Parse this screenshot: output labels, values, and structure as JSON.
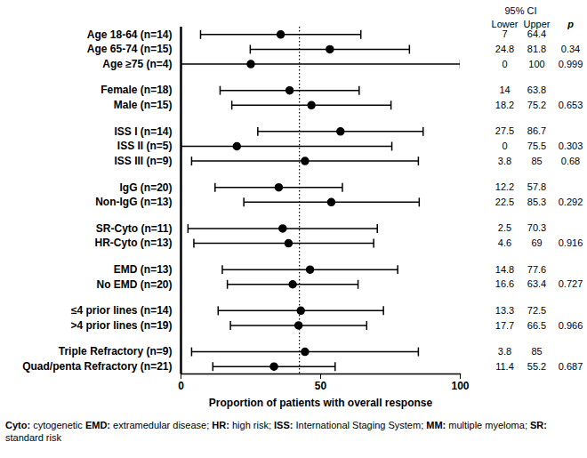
{
  "chart_data": {
    "type": "forest",
    "x_label": "Proportion of patients with overall response",
    "xlim": [
      0,
      100
    ],
    "xticks": [
      0,
      50,
      100
    ],
    "reference_line": 42.4,
    "color": "#000000",
    "ci_header": "95% CI",
    "column_headers": [
      "Lower",
      "Upper",
      "p"
    ],
    "groups": [
      {
        "categories": [
          "Age 18-64 (n=14)",
          "Age 65-74 (n=15)",
          "Age ≥75 (n=4)"
        ],
        "values": [
          35.7,
          53.3,
          25
        ],
        "lower": [
          7,
          24.8,
          0
        ],
        "upper": [
          64.4,
          81.8,
          100
        ],
        "p": [
          null,
          0.34,
          0.999
        ]
      },
      {
        "categories": [
          "Female (n=18)",
          "Male (n=15)"
        ],
        "values": [
          38.9,
          46.7
        ],
        "lower": [
          14,
          18.2
        ],
        "upper": [
          63.8,
          75.2
        ],
        "p": [
          null,
          0.653
        ]
      },
      {
        "categories": [
          "ISS I (n=14)",
          "ISS II (n=5)",
          "ISS III (n=9)"
        ],
        "values": [
          57.1,
          20,
          44.4
        ],
        "lower": [
          27.5,
          0,
          3.8
        ],
        "upper": [
          86.7,
          75.5,
          85
        ],
        "p": [
          null,
          0.303,
          0.68
        ]
      },
      {
        "categories": [
          "IgG (n=20)",
          "Non-IgG (n=13)"
        ],
        "values": [
          35,
          53.8
        ],
        "lower": [
          12.2,
          22.5
        ],
        "upper": [
          57.8,
          85.3
        ],
        "p": [
          null,
          0.292
        ]
      },
      {
        "categories": [
          "SR-Cyto (n=11)",
          "HR-Cyto (n=13)"
        ],
        "values": [
          36.4,
          38.5
        ],
        "lower": [
          2.5,
          4.6
        ],
        "upper": [
          70.3,
          69
        ],
        "p": [
          null,
          0.916
        ]
      },
      {
        "categories": [
          "EMD (n=13)",
          "No EMD (n=20)"
        ],
        "values": [
          46.2,
          40
        ],
        "lower": [
          14.8,
          16.6
        ],
        "upper": [
          77.6,
          63.4
        ],
        "p": [
          null,
          0.727
        ]
      },
      {
        "categories": [
          "≤4 prior lines (n=14)",
          ">4 prior lines (n=19)"
        ],
        "values": [
          42.9,
          42.1
        ],
        "lower": [
          13.3,
          17.7
        ],
        "upper": [
          72.5,
          66.5
        ],
        "p": [
          null,
          0.966
        ]
      },
      {
        "categories": [
          "Triple Refractory (n=9)",
          "Quad/penta Refractory (n=21)"
        ],
        "values": [
          44.4,
          33.3
        ],
        "lower": [
          3.8,
          11.4
        ],
        "upper": [
          85,
          55.2
        ],
        "p": [
          null,
          0.687
        ]
      }
    ],
    "footnote": [
      {
        "abbr": "Cyto:",
        "text": " cytogenetic "
      },
      {
        "abbr": "EMD:",
        "text": " extramedular disease; "
      },
      {
        "abbr": "HR:",
        "text": " high risk; "
      },
      {
        "abbr": "ISS:",
        "text": " International Staging System; "
      },
      {
        "abbr": "MM:",
        "text": " multiple myeloma; "
      },
      {
        "abbr": "SR:",
        "text": " standard risk"
      }
    ]
  }
}
